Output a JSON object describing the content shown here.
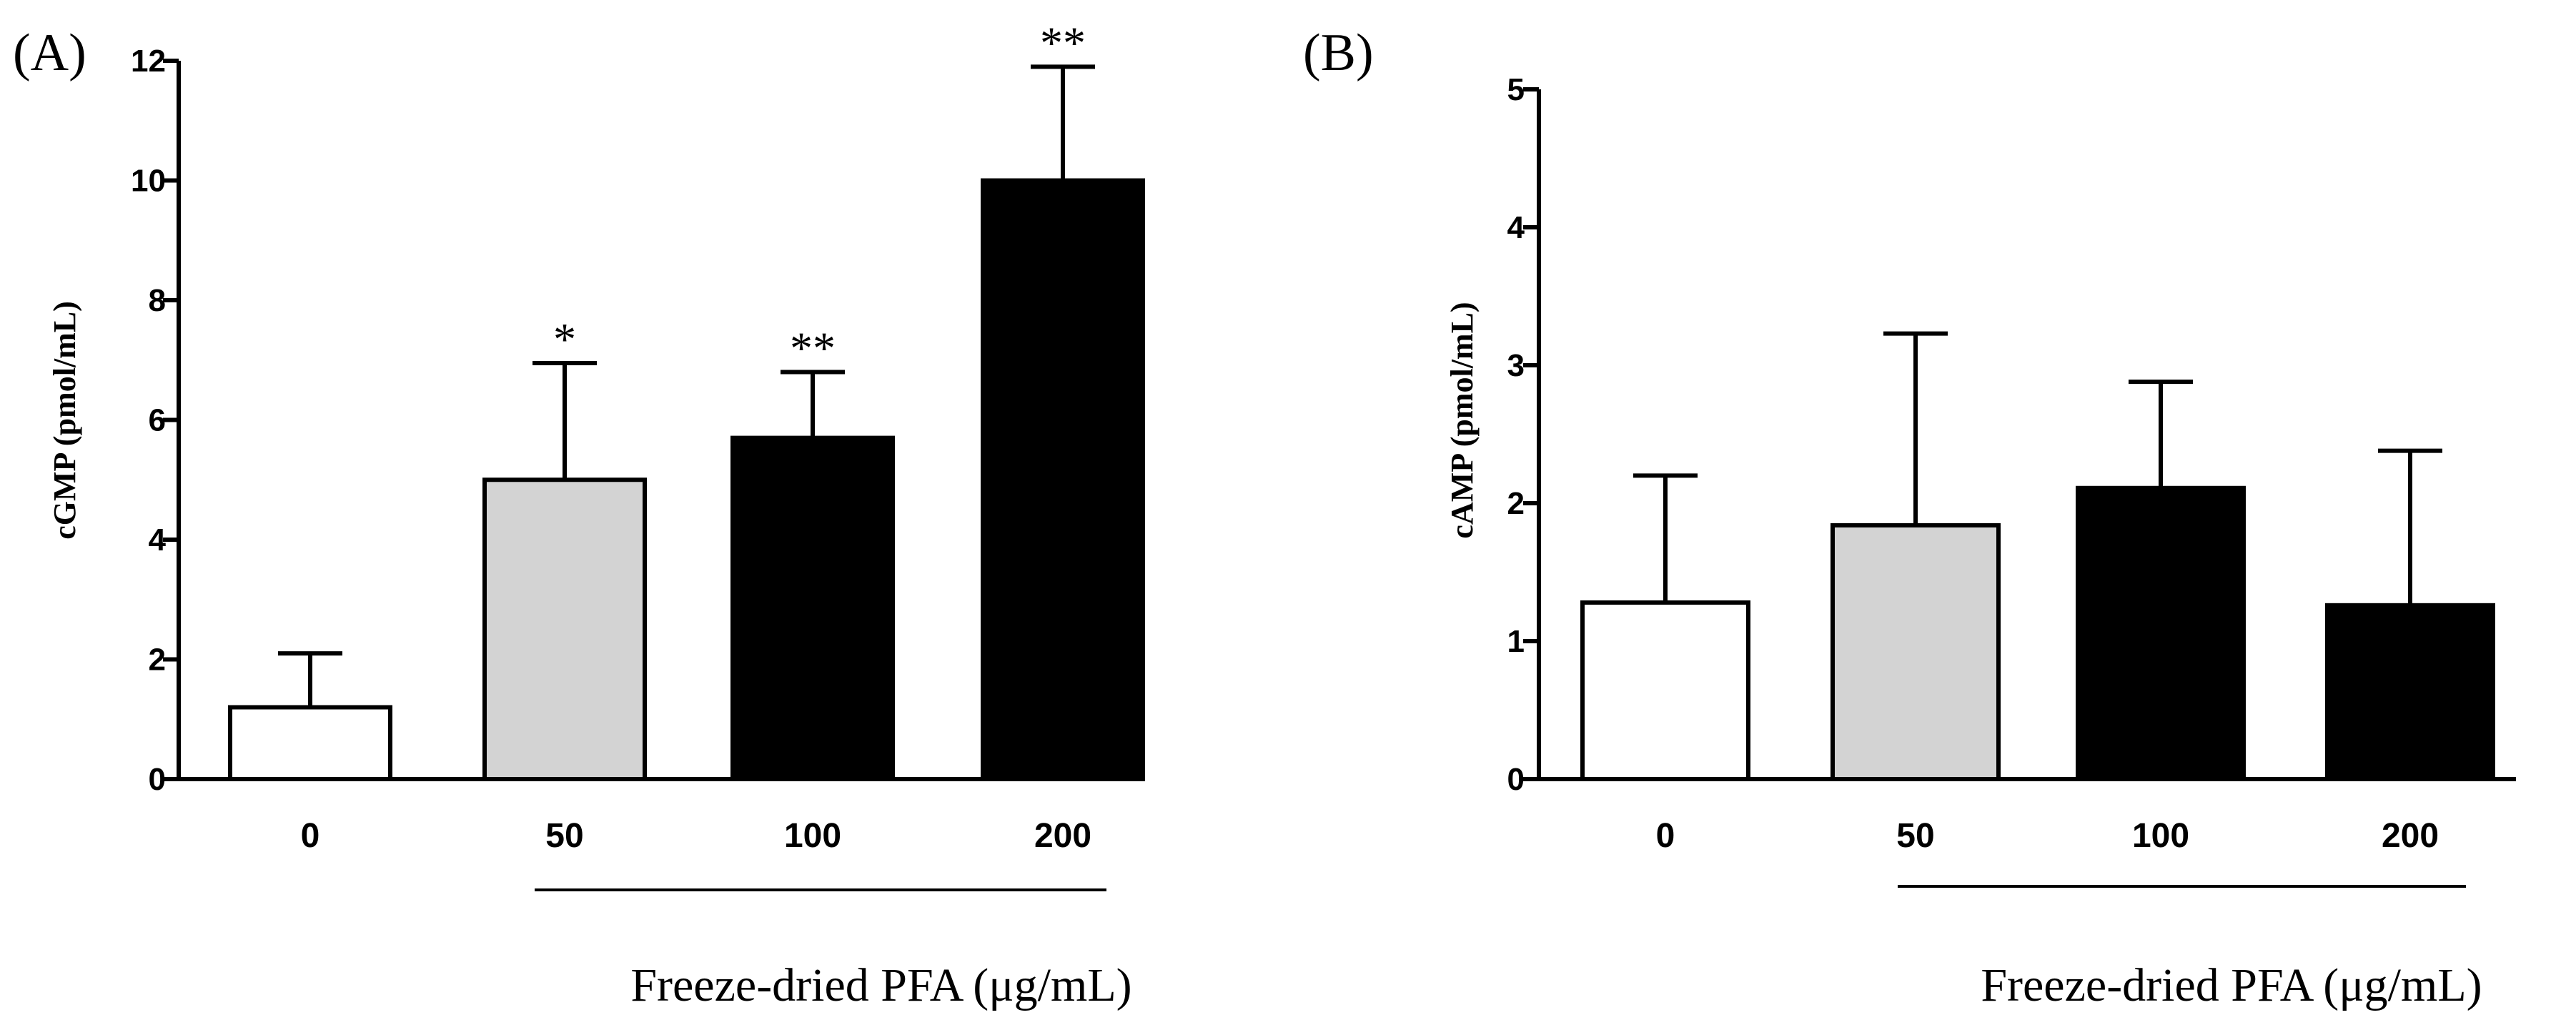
{
  "colors": {
    "axis": "#000000",
    "label": "#000000",
    "fill_control": "#ffffff",
    "fill_low": "#d3d3d3",
    "fill_high": "#000000"
  },
  "chart_data": [
    {
      "type": "bar",
      "panel_label": "(A)",
      "ylabel": "cGMP (pmol/mL)",
      "xlabel": "Freeze-dried  PFA  (μg/mL)",
      "categories": [
        "0",
        "50",
        "100",
        "200"
      ],
      "values": [
        1.2,
        5.0,
        5.7,
        10.0
      ],
      "error_plus": [
        0.9,
        1.95,
        1.1,
        1.9
      ],
      "significance": [
        "",
        "*",
        "**",
        "**"
      ],
      "fill_colors": [
        "#ffffff",
        "#d3d3d3",
        "#000000",
        "#000000"
      ],
      "ylim": [
        0,
        12
      ],
      "yticks": [
        "0",
        "2",
        "4",
        "6",
        "8",
        "10",
        "12"
      ],
      "grid": false
    },
    {
      "type": "bar",
      "panel_label": "(B)",
      "ylabel": "cAMP (pmol/mL)",
      "xlabel": "Freeze-dried  PFA  (μg/mL)",
      "categories": [
        "0",
        "50",
        "100",
        "200"
      ],
      "values": [
        1.28,
        1.84,
        2.11,
        1.26
      ],
      "error_plus": [
        0.92,
        1.39,
        0.77,
        1.12
      ],
      "significance": [
        "",
        "",
        "",
        ""
      ],
      "fill_colors": [
        "#ffffff",
        "#d3d3d3",
        "#000000",
        "#000000"
      ],
      "ylim": [
        0,
        5
      ],
      "yticks": [
        "0",
        "1",
        "2",
        "3",
        "4",
        "5"
      ],
      "grid": false
    }
  ]
}
